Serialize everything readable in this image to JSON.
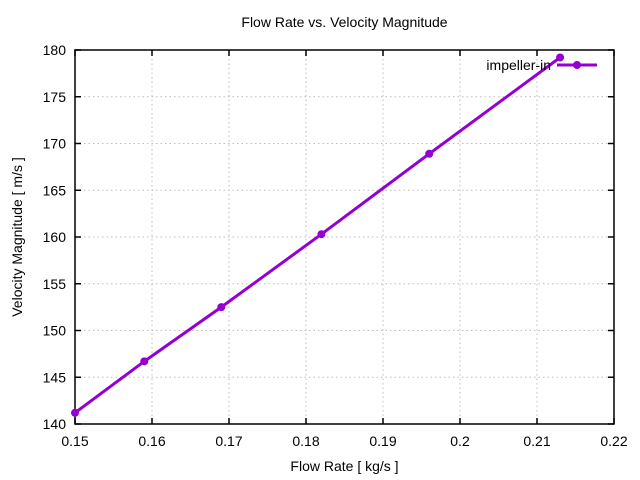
{
  "title": "Flow Rate vs. Velocity Magnitude",
  "legend": {
    "label": "impeller-in",
    "position": "top-right-inside"
  },
  "colors": {
    "line": "#9400d3",
    "grid": "#bdbdbd",
    "axis": "#000000",
    "text": "#000000",
    "background": "#ffffff"
  },
  "chart_data": {
    "type": "line",
    "title": "Flow Rate vs. Velocity Magnitude",
    "xlabel": "Flow Rate [ kg/s ]",
    "ylabel": "Velocity Magnitude [ m/s ]",
    "xlim": [
      0.15,
      0.22
    ],
    "ylim": [
      140,
      180
    ],
    "xticks": [
      0.15,
      0.16,
      0.17,
      0.18,
      0.19,
      0.2,
      0.21,
      0.22
    ],
    "xtick_labels": [
      "0.15",
      "0.16",
      "0.17",
      "0.18",
      "0.19",
      "0.2",
      "0.21",
      "0.22"
    ],
    "yticks": [
      140,
      145,
      150,
      155,
      160,
      165,
      170,
      175,
      180
    ],
    "ytick_labels": [
      "140",
      "145",
      "150",
      "155",
      "160",
      "165",
      "170",
      "175",
      "180"
    ],
    "grid": true,
    "legend_position": "top-right-inside",
    "series": [
      {
        "name": "impeller-in",
        "color": "#9400d3",
        "marker": "circle",
        "line_width": 3,
        "x": [
          0.15,
          0.159,
          0.169,
          0.182,
          0.196,
          0.213
        ],
        "y": [
          141.2,
          146.7,
          152.5,
          160.3,
          168.9,
          179.2
        ]
      }
    ]
  }
}
